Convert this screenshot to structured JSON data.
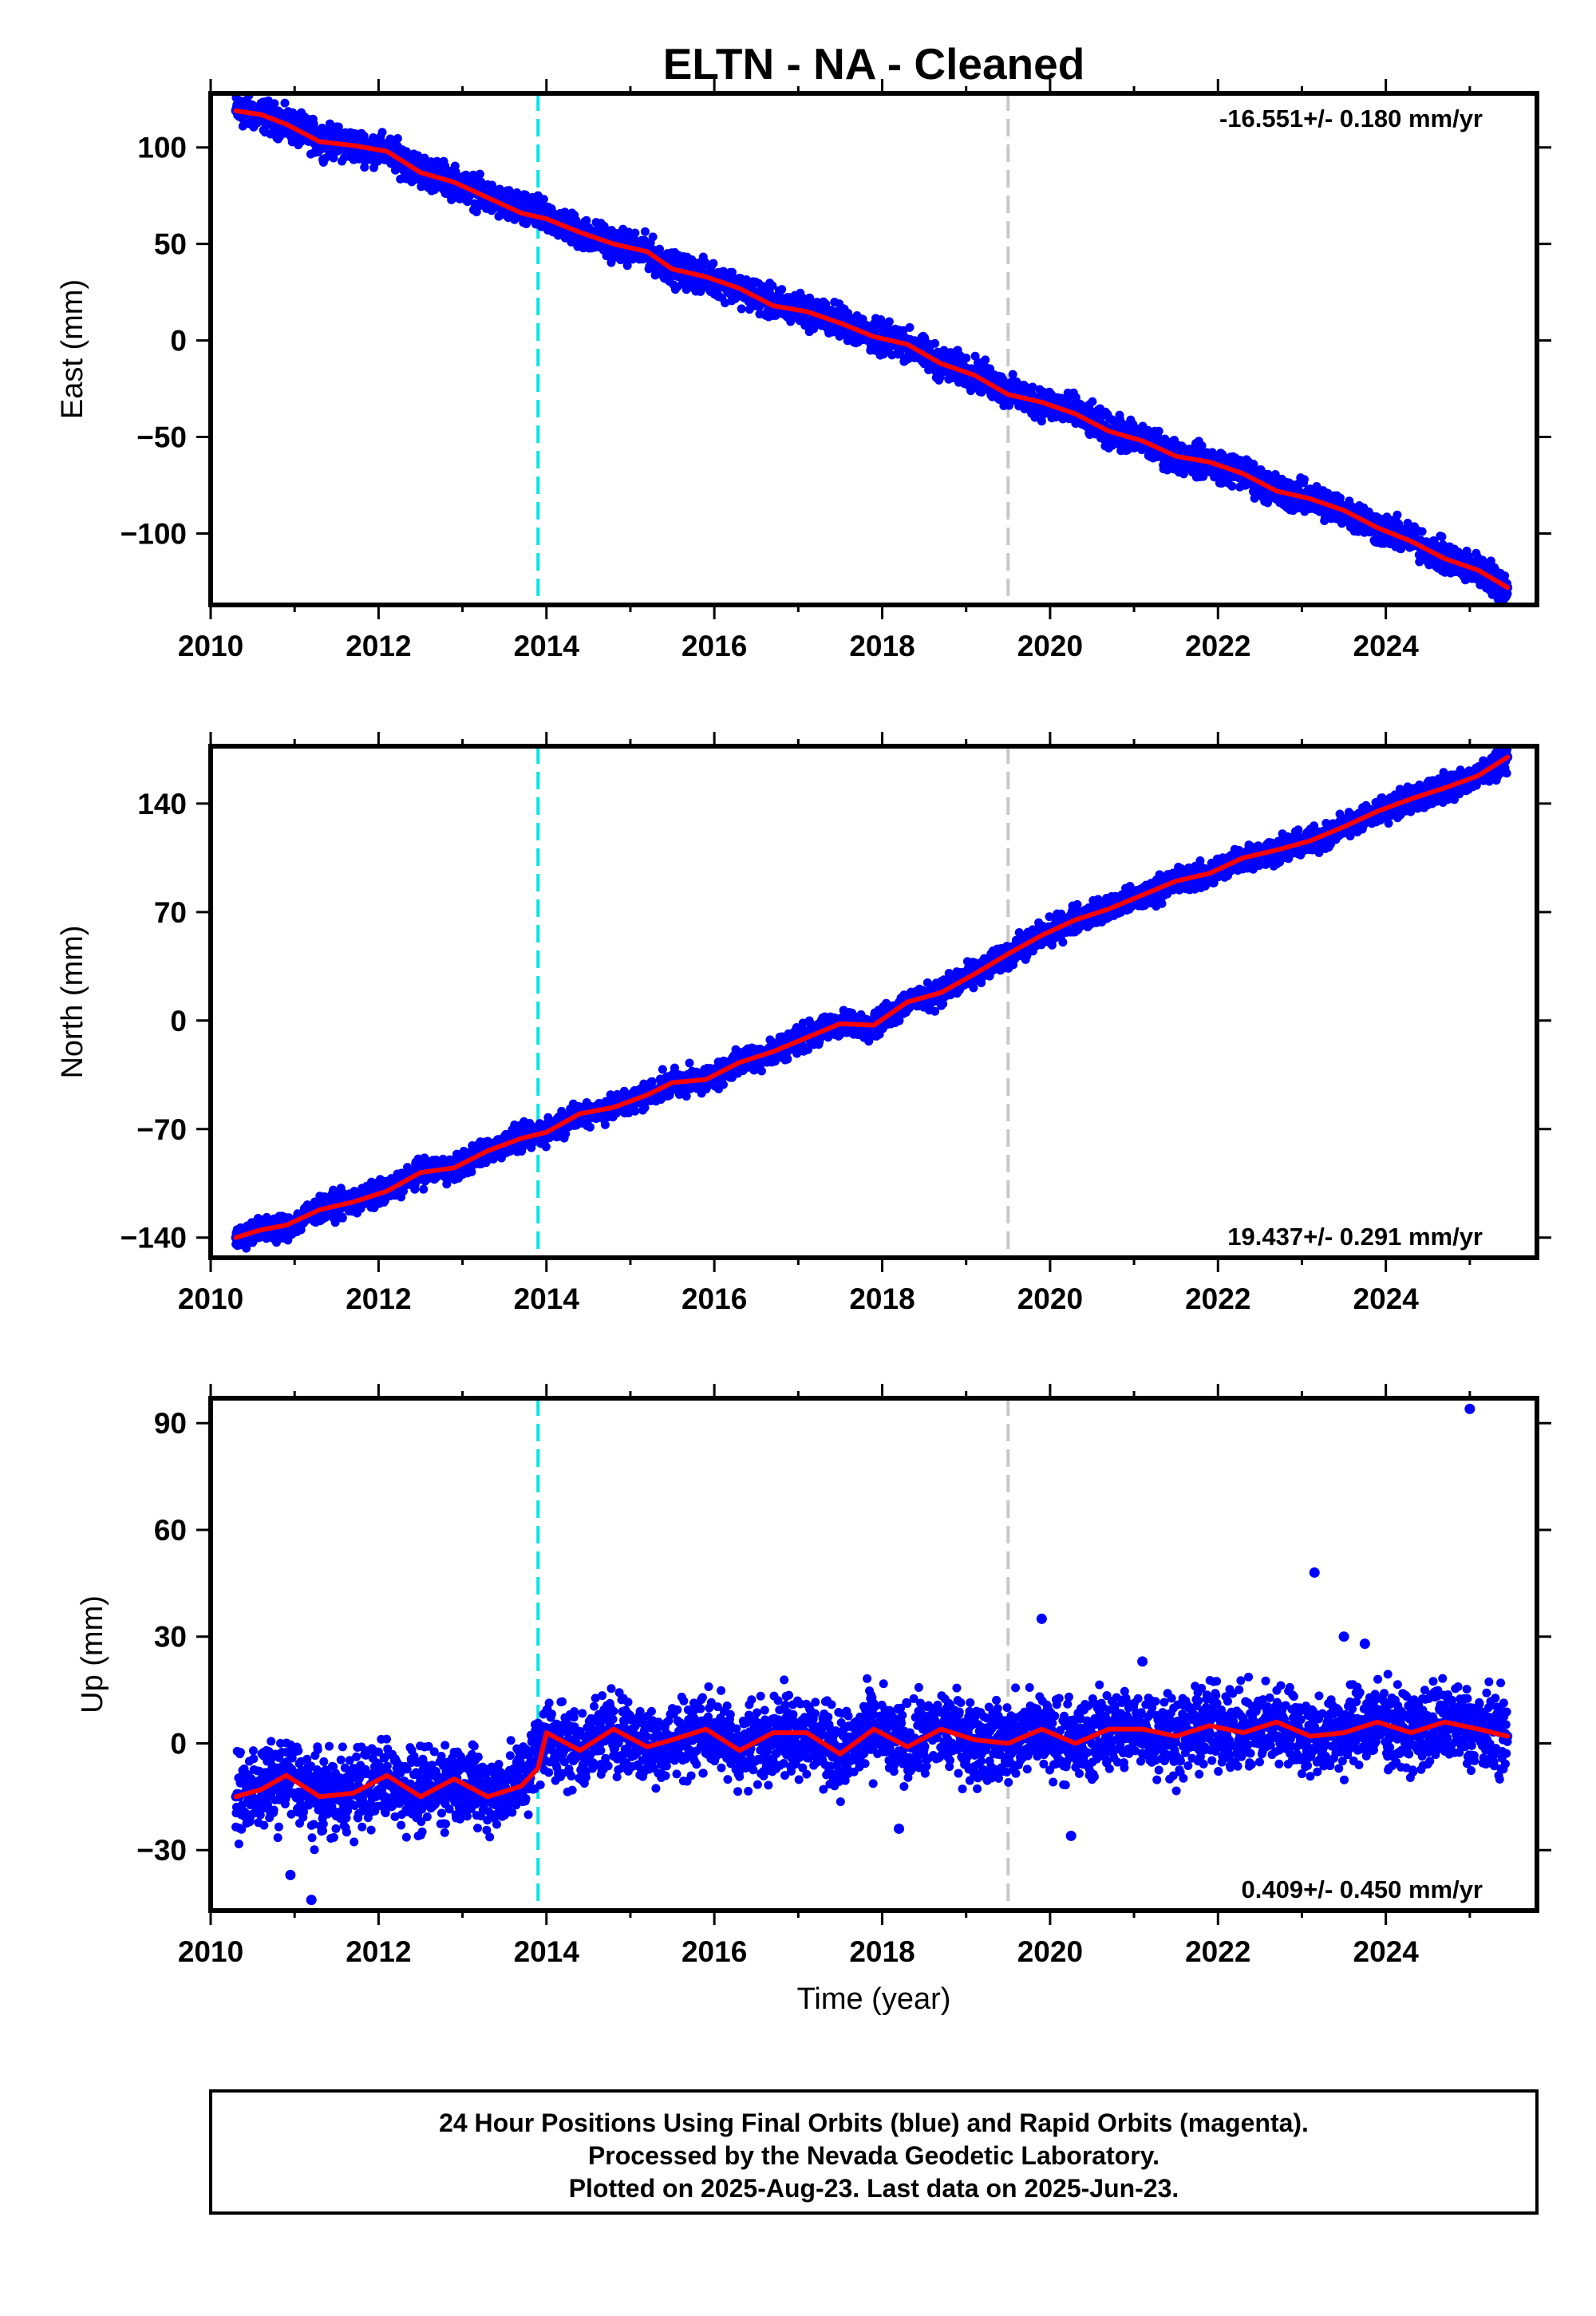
{
  "chart_data": {
    "title": "ELTN  - NA - Cleaned",
    "type": "scatter",
    "x_label": "Time (year)",
    "x_range": [
      2010.0,
      2025.8
    ],
    "x_ticks": [
      2010,
      2012,
      2014,
      2016,
      2018,
      2020,
      2022,
      2024
    ],
    "x_tick_labels": [
      "2010",
      "2012",
      "2014",
      "2016",
      "2018",
      "2020",
      "2022",
      "2024"
    ],
    "event_lines": [
      {
        "x": 2013.9,
        "color": "#00e5e5",
        "style": "dashed"
      },
      {
        "x": 2019.5,
        "color": "#c8c8c8",
        "style": "dashed"
      }
    ],
    "colors": {
      "points": "#0000ff",
      "fit": "#ff0000",
      "frame": "#000000"
    },
    "grid": false,
    "panels": [
      {
        "id": "east",
        "ylabel": "East (mm)",
        "ylim": [
          -137,
          128
        ],
        "y_ticks": [
          100,
          50,
          0,
          -50,
          -100
        ],
        "y_tick_labels": [
          "100",
          "50",
          "0",
          "−50",
          "−100"
        ],
        "rate_text": "-16.551+/- 0.180 mm/yr",
        "rate_position": "top-right",
        "series": [
          {
            "kind": "points",
            "x": [
              2010.3,
              2010.6,
              2010.9,
              2011.3,
              2011.7,
              2012.1,
              2012.5,
              2012.9,
              2013.3,
              2013.7,
              2014.0,
              2014.4,
              2014.8,
              2015.2,
              2015.5,
              2015.9,
              2016.3,
              2016.7,
              2017.1,
              2017.5,
              2017.9,
              2018.3,
              2018.7,
              2019.1,
              2019.5,
              2019.9,
              2020.3,
              2020.7,
              2021.1,
              2021.5,
              2021.9,
              2022.3,
              2022.7,
              2023.1,
              2023.5,
              2023.9,
              2024.3,
              2024.7,
              2025.1,
              2025.45
            ],
            "y": [
              119,
              117,
              112,
              104,
              101,
              98,
              88,
              82,
              74,
              67,
              64,
              56,
              50,
              46,
              37,
              33,
              27,
              19,
              15,
              10,
              2,
              -2,
              -12,
              -17,
              -27,
              -32,
              -37,
              -47,
              -52,
              -60,
              -63,
              -69,
              -78,
              -82,
              -88,
              -97,
              -103,
              -113,
              -119,
              -128
            ]
          },
          {
            "kind": "fit",
            "x": [
              2010.3,
              2010.6,
              2010.9,
              2011.3,
              2011.7,
              2012.1,
              2012.5,
              2012.9,
              2013.3,
              2013.7,
              2014.0,
              2014.4,
              2014.8,
              2015.2,
              2015.5,
              2015.9,
              2016.3,
              2016.7,
              2017.1,
              2017.5,
              2017.9,
              2018.3,
              2018.7,
              2019.1,
              2019.5,
              2019.9,
              2020.3,
              2020.7,
              2021.1,
              2021.5,
              2021.9,
              2022.3,
              2022.7,
              2023.1,
              2023.5,
              2023.9,
              2024.3,
              2024.7,
              2025.1,
              2025.45
            ],
            "y": [
              119,
              117,
              112,
              103,
              101,
              98,
              87,
              82,
              74,
              66,
              63,
              56,
              50,
              46,
              37,
              33,
              27,
              18,
              15,
              9,
              2,
              -2,
              -12,
              -18,
              -28,
              -32,
              -38,
              -47,
              -52,
              -60,
              -63,
              -69,
              -78,
              -82,
              -88,
              -97,
              -104,
              -113,
              -119,
              -128
            ]
          }
        ]
      },
      {
        "id": "north",
        "ylabel": "North (mm)",
        "ylim": [
          -153,
          177
        ],
        "y_ticks": [
          140,
          70,
          0,
          -70,
          -140
        ],
        "y_tick_labels": [
          "140",
          "70",
          "0",
          "−70",
          "−140"
        ],
        "rate_text": "19.437+/- 0.291 mm/yr",
        "rate_position": "bottom-right",
        "series": [
          {
            "kind": "points",
            "x": [
              2010.3,
              2010.6,
              2010.9,
              2011.3,
              2011.7,
              2012.1,
              2012.5,
              2012.9,
              2013.3,
              2013.7,
              2014.0,
              2014.4,
              2014.8,
              2015.2,
              2015.5,
              2015.9,
              2016.3,
              2016.7,
              2017.1,
              2017.5,
              2017.9,
              2018.3,
              2018.7,
              2019.1,
              2019.5,
              2019.9,
              2020.3,
              2020.7,
              2021.1,
              2021.5,
              2021.9,
              2022.3,
              2022.7,
              2023.1,
              2023.5,
              2023.9,
              2024.3,
              2024.7,
              2025.1,
              2025.45
            ],
            "y": [
              -140,
              -135,
              -133,
              -122,
              -117,
              -110,
              -98,
              -95,
              -84,
              -76,
              -72,
              -60,
              -56,
              -48,
              -40,
              -38,
              -27,
              -20,
              -10,
              -2,
              -3,
              12,
              18,
              30,
              43,
              55,
              65,
              72,
              80,
              90,
              95,
              105,
              110,
              115,
              125,
              135,
              143,
              150,
              158,
              170
            ]
          },
          {
            "kind": "fit",
            "x": [
              2010.3,
              2010.6,
              2010.9,
              2011.3,
              2011.7,
              2012.1,
              2012.5,
              2012.9,
              2013.3,
              2013.7,
              2014.0,
              2014.4,
              2014.8,
              2015.2,
              2015.5,
              2015.9,
              2016.3,
              2016.7,
              2017.1,
              2017.5,
              2017.9,
              2018.3,
              2018.7,
              2019.1,
              2019.5,
              2019.9,
              2020.3,
              2020.7,
              2021.1,
              2021.5,
              2021.9,
              2022.3,
              2022.7,
              2023.1,
              2023.5,
              2023.9,
              2024.3,
              2024.7,
              2025.1,
              2025.45
            ],
            "y": [
              -140,
              -135,
              -132,
              -122,
              -117,
              -110,
              -98,
              -95,
              -84,
              -76,
              -72,
              -60,
              -56,
              -48,
              -40,
              -38,
              -27,
              -20,
              -11,
              -2,
              -3,
              12,
              18,
              30,
              43,
              55,
              65,
              72,
              81,
              90,
              95,
              105,
              110,
              116,
              125,
              135,
              143,
              150,
              158,
              170
            ]
          }
        ]
      },
      {
        "id": "up",
        "ylabel": "Up (mm)",
        "ylim": [
          -47,
          97
        ],
        "y_ticks": [
          90,
          60,
          30,
          0,
          -30
        ],
        "y_tick_labels": [
          "90",
          "60",
          "30",
          "0",
          "−30"
        ],
        "rate_text": "0.409+/- 0.450 mm/yr",
        "rate_position": "bottom-right",
        "series": [
          {
            "kind": "points",
            "x": [
              2010.3,
              2010.6,
              2010.9,
              2011.3,
              2011.7,
              2012.1,
              2012.5,
              2012.9,
              2013.3,
              2013.7,
              2014.0,
              2014.4,
              2014.8,
              2015.2,
              2015.5,
              2015.9,
              2016.3,
              2016.7,
              2017.1,
              2017.5,
              2017.9,
              2018.3,
              2018.7,
              2019.1,
              2019.5,
              2019.9,
              2020.3,
              2020.7,
              2021.1,
              2021.5,
              2021.9,
              2022.3,
              2022.7,
              2023.1,
              2023.5,
              2023.9,
              2024.3,
              2024.7,
              2025.1,
              2025.45
            ],
            "y": [
              -15,
              -13,
              -10,
              -15,
              -13,
              -10,
              -14,
              -10,
              -14,
              -11,
              3,
              -2,
              4,
              -1,
              1,
              4,
              -2,
              3,
              3,
              -3,
              4,
              -1,
              4,
              1,
              0,
              4,
              0,
              4,
              4,
              2,
              5,
              3,
              6,
              2,
              3,
              6,
              3,
              6,
              4,
              2
            ]
          },
          {
            "kind": "fit",
            "x": [
              2010.3,
              2010.6,
              2010.9,
              2011.3,
              2011.7,
              2012.1,
              2012.5,
              2012.9,
              2013.3,
              2013.7,
              2013.9,
              2014.0,
              2014.4,
              2014.8,
              2015.2,
              2015.5,
              2015.9,
              2016.3,
              2016.7,
              2017.1,
              2017.5,
              2017.9,
              2018.3,
              2018.7,
              2019.1,
              2019.5,
              2019.9,
              2020.3,
              2020.7,
              2021.1,
              2021.5,
              2021.9,
              2022.3,
              2022.7,
              2023.1,
              2023.5,
              2023.9,
              2024.3,
              2024.7,
              2025.1,
              2025.45
            ],
            "y": [
              -15,
              -13,
              -9,
              -15,
              -14,
              -9,
              -15,
              -10,
              -15,
              -12,
              -7,
              3,
              -2,
              4,
              -1,
              1,
              4,
              -2,
              3,
              3,
              -3,
              4,
              -1,
              4,
              1,
              0,
              4,
              0,
              4,
              4,
              2,
              5,
              3,
              6,
              2,
              3,
              6,
              3,
              6,
              4,
              2
            ]
          },
          {
            "kind": "outliers",
            "x": [
              2010.95,
              2011.2,
              2018.2,
              2019.9,
              2020.25,
              2021.1,
              2023.15,
              2023.5,
              2023.75,
              2025.0
            ],
            "y": [
              -37,
              -44,
              -24,
              35,
              -26,
              23,
              48,
              30,
              28,
              94
            ]
          }
        ]
      }
    ]
  },
  "footer": {
    "line1": "24 Hour Positions Using Final Orbits (blue) and Rapid Orbits (magenta).",
    "line2": "Processed by the Nevada Geodetic Laboratory.",
    "line3": "Plotted on 2025-Aug-23. Last data on 2025-Jun-23."
  }
}
